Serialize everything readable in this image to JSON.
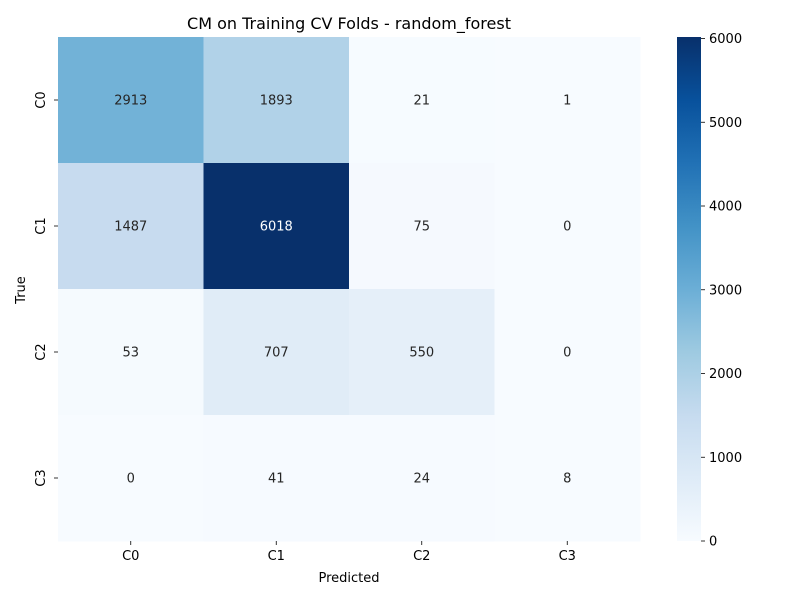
{
  "chart_data": {
    "type": "heatmap",
    "title": "CM on Training CV Folds - random_forest",
    "xlabel": "Predicted",
    "ylabel": "True",
    "x_categories": [
      "C0",
      "C1",
      "C2",
      "C3"
    ],
    "y_categories": [
      "C0",
      "C1",
      "C2",
      "C3"
    ],
    "values": [
      [
        2913,
        1893,
        21,
        1
      ],
      [
        1487,
        6018,
        75,
        0
      ],
      [
        53,
        707,
        550,
        0
      ],
      [
        0,
        41,
        24,
        8
      ]
    ],
    "colormap": "Blues",
    "colorbar": {
      "min": 0,
      "max": 6018,
      "ticks": [
        0,
        1000,
        2000,
        3000,
        4000,
        5000,
        6000
      ]
    },
    "grid": false
  }
}
